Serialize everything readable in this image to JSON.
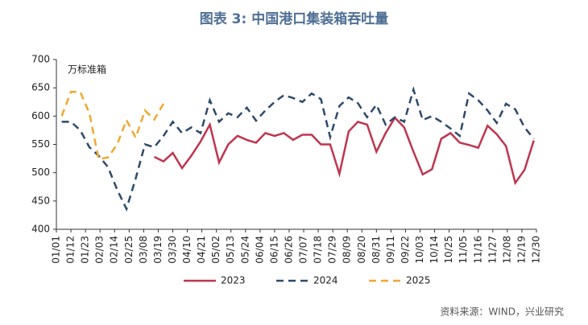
{
  "chart_data": {
    "type": "line",
    "title": "图表 3:  中国港口集装箱吞吐量",
    "y_label": "万标准箱",
    "source": "资料来源：WIND，兴业研究",
    "x": [
      4,
      11,
      18,
      25,
      32,
      39,
      46,
      53,
      60,
      67,
      74,
      81,
      88,
      95,
      102,
      109,
      116,
      123,
      130,
      137,
      144,
      151,
      158,
      165,
      172,
      179,
      186,
      193,
      200,
      207,
      214,
      221,
      228,
      235,
      242,
      249,
      256,
      263,
      270,
      277,
      284,
      291,
      298,
      305,
      312,
      319,
      326,
      333,
      340,
      347,
      354,
      361
    ],
    "xlim": [
      0,
      363
    ],
    "xticks": [
      {
        "value": 0,
        "label": "01/01"
      },
      {
        "value": 11,
        "label": "01/12"
      },
      {
        "value": 22,
        "label": "01/23"
      },
      {
        "value": 33,
        "label": "02/03"
      },
      {
        "value": 44,
        "label": "02/14"
      },
      {
        "value": 55,
        "label": "02/25"
      },
      {
        "value": 66,
        "label": "03/08"
      },
      {
        "value": 77,
        "label": "03/19"
      },
      {
        "value": 88,
        "label": "03/30"
      },
      {
        "value": 99,
        "label": "04/10"
      },
      {
        "value": 110,
        "label": "04/21"
      },
      {
        "value": 121,
        "label": "05/02"
      },
      {
        "value": 132,
        "label": "05/13"
      },
      {
        "value": 143,
        "label": "05/24"
      },
      {
        "value": 154,
        "label": "06/04"
      },
      {
        "value": 165,
        "label": "06/15"
      },
      {
        "value": 176,
        "label": "06/26"
      },
      {
        "value": 187,
        "label": "07/07"
      },
      {
        "value": 198,
        "label": "07/18"
      },
      {
        "value": 209,
        "label": "07/29"
      },
      {
        "value": 220,
        "label": "08/09"
      },
      {
        "value": 231,
        "label": "08/20"
      },
      {
        "value": 242,
        "label": "08/31"
      },
      {
        "value": 253,
        "label": "09/11"
      },
      {
        "value": 264,
        "label": "09/22"
      },
      {
        "value": 275,
        "label": "10/03"
      },
      {
        "value": 286,
        "label": "10/14"
      },
      {
        "value": 297,
        "label": "10/25"
      },
      {
        "value": 308,
        "label": "11/05"
      },
      {
        "value": 319,
        "label": "11/16"
      },
      {
        "value": 330,
        "label": "11/27"
      },
      {
        "value": 341,
        "label": "12/08"
      },
      {
        "value": 352,
        "label": "12/19"
      },
      {
        "value": 363,
        "label": "12/30"
      }
    ],
    "ylim": [
      400,
      700
    ],
    "yticks": [
      400,
      450,
      500,
      550,
      600,
      650,
      700
    ],
    "series": [
      {
        "name": "2023",
        "color": "#c0354f",
        "dash": false,
        "values": [
          null,
          null,
          null,
          null,
          null,
          null,
          null,
          null,
          null,
          null,
          528,
          520,
          535,
          508,
          530,
          555,
          585,
          518,
          550,
          565,
          558,
          553,
          570,
          565,
          570,
          558,
          567,
          567,
          550,
          550,
          498,
          573,
          590,
          585,
          537,
          570,
          597,
          580,
          537,
          497,
          506,
          560,
          570,
          553,
          549,
          544,
          583,
          568,
          547,
          482,
          505,
          557
        ]
      },
      {
        "name": "2024",
        "color": "#2e4a6b",
        "dash": true,
        "values": [
          590,
          590,
          575,
          545,
          530,
          510,
          470,
          436,
          490,
          550,
          545,
          565,
          590,
          570,
          580,
          570,
          628,
          590,
          605,
          598,
          615,
          592,
          610,
          625,
          637,
          632,
          625,
          640,
          630,
          563,
          618,
          633,
          623,
          598,
          620,
          585,
          598,
          590,
          647,
          593,
          600,
          590,
          578,
          565,
          640,
          628,
          610,
          588,
          622,
          612,
          580,
          560
        ]
      },
      {
        "name": "2025",
        "color": "#f0a830",
        "dash": true,
        "values": [
          600,
          643,
          643,
          605,
          524,
          527,
          550,
          593,
          562,
          610,
          594,
          622,
          null,
          null,
          null,
          null,
          null,
          null,
          null,
          null,
          null,
          null,
          null,
          null,
          null,
          null,
          null,
          null,
          null,
          null,
          null,
          null,
          null,
          null,
          null,
          null,
          null,
          null,
          null,
          null,
          null,
          null,
          null,
          null,
          null,
          null,
          null,
          null,
          null,
          null,
          null,
          null
        ]
      }
    ]
  }
}
